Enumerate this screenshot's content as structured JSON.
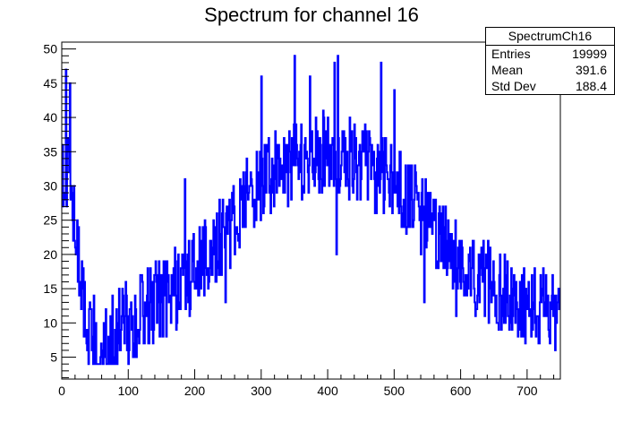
{
  "chart_data": {
    "type": "histogram",
    "title": "Spectrum for channel 16",
    "xlabel": "",
    "ylabel": "",
    "xlim": [
      0,
      750
    ],
    "ylim": [
      1.8,
      51
    ],
    "x_ticks": [
      0,
      100,
      200,
      300,
      400,
      500,
      600,
      700
    ],
    "y_ticks": [
      5,
      10,
      15,
      20,
      25,
      30,
      35,
      40,
      45,
      50
    ],
    "bin_width": 1,
    "line_color": "#0000ff",
    "grid": false,
    "stats_box": {
      "name": "SpectrumCh16",
      "rows": [
        {
          "label": "Entries",
          "value": "19999"
        },
        {
          "label": "Mean",
          "value": "391.6"
        },
        {
          "label": "Std Dev",
          "value": "188.4"
        }
      ]
    },
    "trend_control_points": [
      [
        0,
        30
      ],
      [
        8,
        33
      ],
      [
        15,
        28
      ],
      [
        22,
        22
      ],
      [
        28,
        17
      ],
      [
        35,
        12
      ],
      [
        45,
        8
      ],
      [
        60,
        7
      ],
      [
        80,
        9
      ],
      [
        100,
        10
      ],
      [
        130,
        12
      ],
      [
        160,
        14
      ],
      [
        190,
        17
      ],
      [
        220,
        20
      ],
      [
        250,
        24
      ],
      [
        280,
        28
      ],
      [
        310,
        31
      ],
      [
        340,
        33
      ],
      [
        370,
        34
      ],
      [
        400,
        35
      ],
      [
        430,
        34
      ],
      [
        460,
        33
      ],
      [
        490,
        31
      ],
      [
        520,
        28
      ],
      [
        550,
        25
      ],
      [
        580,
        21
      ],
      [
        610,
        18
      ],
      [
        640,
        16
      ],
      [
        670,
        14
      ],
      [
        700,
        13
      ],
      [
        730,
        12
      ],
      [
        750,
        12
      ]
    ],
    "scatter_amplitude": 6,
    "peaks": [
      {
        "x": 6,
        "y": 47
      },
      {
        "x": 12,
        "y": 45
      },
      {
        "x": 185,
        "y": 31
      },
      {
        "x": 300,
        "y": 46
      },
      {
        "x": 350,
        "y": 49
      },
      {
        "x": 373,
        "y": 46
      },
      {
        "x": 410,
        "y": 48
      },
      {
        "x": 415,
        "y": 49
      },
      {
        "x": 480,
        "y": 48
      },
      {
        "x": 500,
        "y": 44
      },
      {
        "x": 578,
        "y": 22
      },
      {
        "x": 598,
        "y": 22
      }
    ],
    "troughs": [
      {
        "x": 40,
        "y": 4
      },
      {
        "x": 52,
        "y": 4
      },
      {
        "x": 62,
        "y": 4
      },
      {
        "x": 88,
        "y": 6
      },
      {
        "x": 176,
        "y": 12
      },
      {
        "x": 246,
        "y": 13
      },
      {
        "x": 413,
        "y": 20
      },
      {
        "x": 545,
        "y": 13
      },
      {
        "x": 593,
        "y": 11
      },
      {
        "x": 742,
        "y": 6
      }
    ]
  }
}
